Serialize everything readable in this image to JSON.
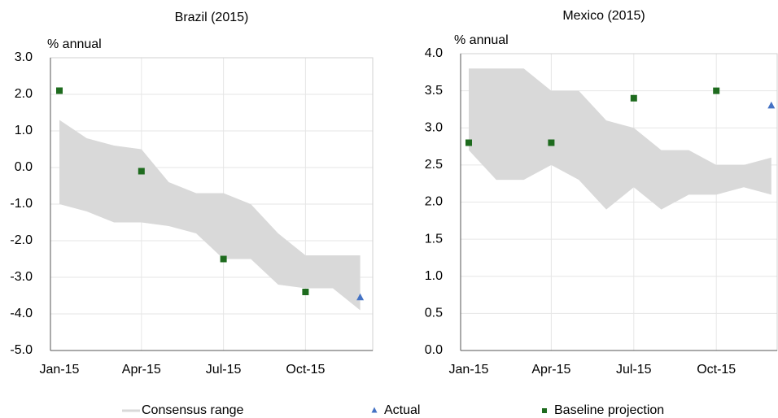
{
  "chart_data": [
    {
      "type": "range-scatter",
      "title": "Brazil (2015)",
      "ylabel": "% annual",
      "categories": [
        "Jan-15",
        null,
        null,
        "Apr-15",
        null,
        null,
        "Jul-15",
        null,
        null,
        "Oct-15",
        null,
        null
      ],
      "ylim": [
        -5,
        3
      ],
      "yticks": [
        {
          "value": -5,
          "label": "-5.0"
        },
        {
          "value": -4,
          "label": "-4.0"
        },
        {
          "value": -3,
          "label": "-3.0"
        },
        {
          "value": -2,
          "label": "-2.0"
        },
        {
          "value": -1,
          "label": "-1.0"
        },
        {
          "value": 0,
          "label": "0.0"
        },
        {
          "value": 1,
          "label": "1.0"
        },
        {
          "value": 2,
          "label": "2.0"
        },
        {
          "value": 3,
          "label": "3.0"
        }
      ],
      "grid": true,
      "series": [
        {
          "name": "Consensus range",
          "color": "#d9d9d9",
          "high": [
            1.3,
            0.8,
            0.6,
            0.5,
            -0.4,
            -0.7,
            -0.7,
            -1.0,
            -1.8,
            -2.4,
            -2.4,
            -2.4
          ],
          "low": [
            -1.0,
            -1.2,
            -1.5,
            -1.5,
            -1.6,
            -1.8,
            -2.5,
            -2.5,
            -3.2,
            -3.3,
            -3.3,
            -3.9
          ]
        },
        {
          "name": "Actual",
          "color": "#4472c4",
          "marker": "triangle",
          "values": [
            null,
            null,
            null,
            null,
            null,
            null,
            null,
            null,
            null,
            null,
            null,
            -3.55
          ]
        },
        {
          "name": "Baseline projection",
          "color": "#1e6b1e",
          "marker": "square",
          "values": [
            2.1,
            null,
            null,
            -0.1,
            null,
            null,
            -2.5,
            null,
            null,
            -3.4,
            null,
            null
          ]
        }
      ]
    },
    {
      "type": "range-scatter",
      "title": "Mexico (2015)",
      "ylabel": "% annual",
      "categories": [
        "Jan-15",
        null,
        null,
        "Apr-15",
        null,
        null,
        "Jul-15",
        null,
        null,
        "Oct-15",
        null,
        null
      ],
      "ylim": [
        0,
        4
      ],
      "yticks": [
        {
          "value": 0,
          "label": "0.0"
        },
        {
          "value": 0.5,
          "label": "0.5"
        },
        {
          "value": 1,
          "label": "1.0"
        },
        {
          "value": 1.5,
          "label": "1.5"
        },
        {
          "value": 2,
          "label": "2.0"
        },
        {
          "value": 2.5,
          "label": "2.5"
        },
        {
          "value": 3,
          "label": "3.0"
        },
        {
          "value": 3.5,
          "label": "3.5"
        },
        {
          "value": 4,
          "label": "4.0"
        }
      ],
      "grid": true,
      "series": [
        {
          "name": "Consensus range",
          "color": "#d9d9d9",
          "high": [
            3.8,
            3.8,
            3.8,
            3.5,
            3.5,
            3.1,
            3.0,
            2.7,
            2.7,
            2.5,
            2.5,
            2.6
          ],
          "low": [
            2.7,
            2.3,
            2.3,
            2.5,
            2.3,
            1.9,
            2.2,
            1.9,
            2.1,
            2.1,
            2.2,
            2.1
          ]
        },
        {
          "name": "Actual",
          "color": "#4472c4",
          "marker": "triangle",
          "values": [
            null,
            null,
            null,
            null,
            null,
            null,
            null,
            null,
            null,
            null,
            null,
            3.3
          ]
        },
        {
          "name": "Baseline projection",
          "color": "#1e6b1e",
          "marker": "square",
          "values": [
            2.8,
            null,
            null,
            2.8,
            null,
            null,
            3.4,
            null,
            null,
            3.5,
            null,
            null
          ]
        }
      ]
    }
  ]
}
